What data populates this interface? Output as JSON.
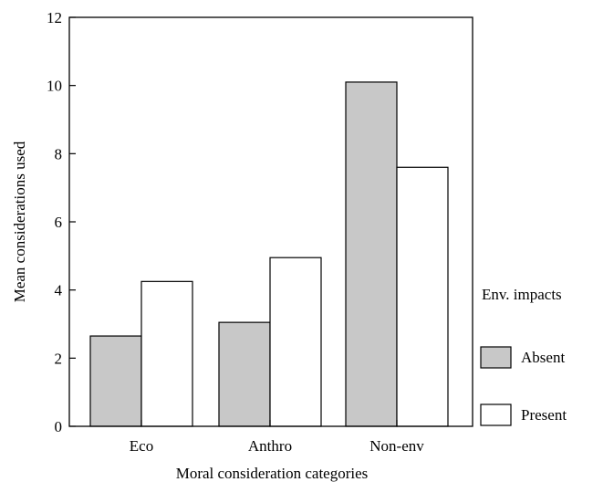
{
  "chart_data": {
    "type": "bar",
    "categories": [
      "Eco",
      "Anthro",
      "Non-env"
    ],
    "series": [
      {
        "name": "Absent",
        "values": [
          2.65,
          3.05,
          10.1
        ],
        "color": "#c8c8c8"
      },
      {
        "name": "Present",
        "values": [
          4.25,
          4.95,
          7.6
        ],
        "color": "#ffffff"
      }
    ],
    "xlabel": "Moral consideration categories",
    "ylabel": "Mean considerations used",
    "ylim": [
      0,
      12
    ],
    "yticks": [
      0,
      2,
      4,
      6,
      8,
      10,
      12
    ],
    "legend": {
      "title": "Env. impacts",
      "placement": "right"
    },
    "grid": false
  }
}
